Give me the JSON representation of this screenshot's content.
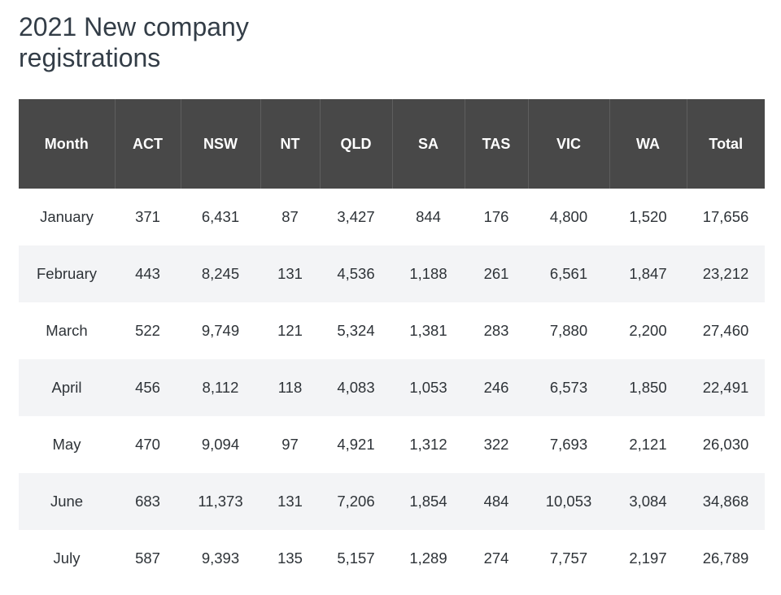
{
  "title": "2021 New company registrations",
  "colors": {
    "header_bg": "#484848",
    "header_text": "#ffffff",
    "stripe": "#f3f4f6"
  },
  "chart_data": {
    "type": "table",
    "title": "2021 New company registrations",
    "columns": [
      "Month",
      "ACT",
      "NSW",
      "NT",
      "QLD",
      "SA",
      "TAS",
      "VIC",
      "WA",
      "Total"
    ],
    "rows": [
      [
        "January",
        "371",
        "6,431",
        "87",
        "3,427",
        "844",
        "176",
        "4,800",
        "1,520",
        "17,656"
      ],
      [
        "February",
        "443",
        "8,245",
        "131",
        "4,536",
        "1,188",
        "261",
        "6,561",
        "1,847",
        "23,212"
      ],
      [
        "March",
        "522",
        "9,749",
        "121",
        "5,324",
        "1,381",
        "283",
        "7,880",
        "2,200",
        "27,460"
      ],
      [
        "April",
        "456",
        "8,112",
        "118",
        "4,083",
        "1,053",
        "246",
        "6,573",
        "1,850",
        "22,491"
      ],
      [
        "May",
        "470",
        "9,094",
        "97",
        "4,921",
        "1,312",
        "322",
        "7,693",
        "2,121",
        "26,030"
      ],
      [
        "June",
        "683",
        "11,373",
        "131",
        "7,206",
        "1,854",
        "484",
        "10,053",
        "3,084",
        "34,868"
      ],
      [
        "July",
        "587",
        "9,393",
        "135",
        "5,157",
        "1,289",
        "274",
        "7,757",
        "2,197",
        "26,789"
      ]
    ]
  }
}
